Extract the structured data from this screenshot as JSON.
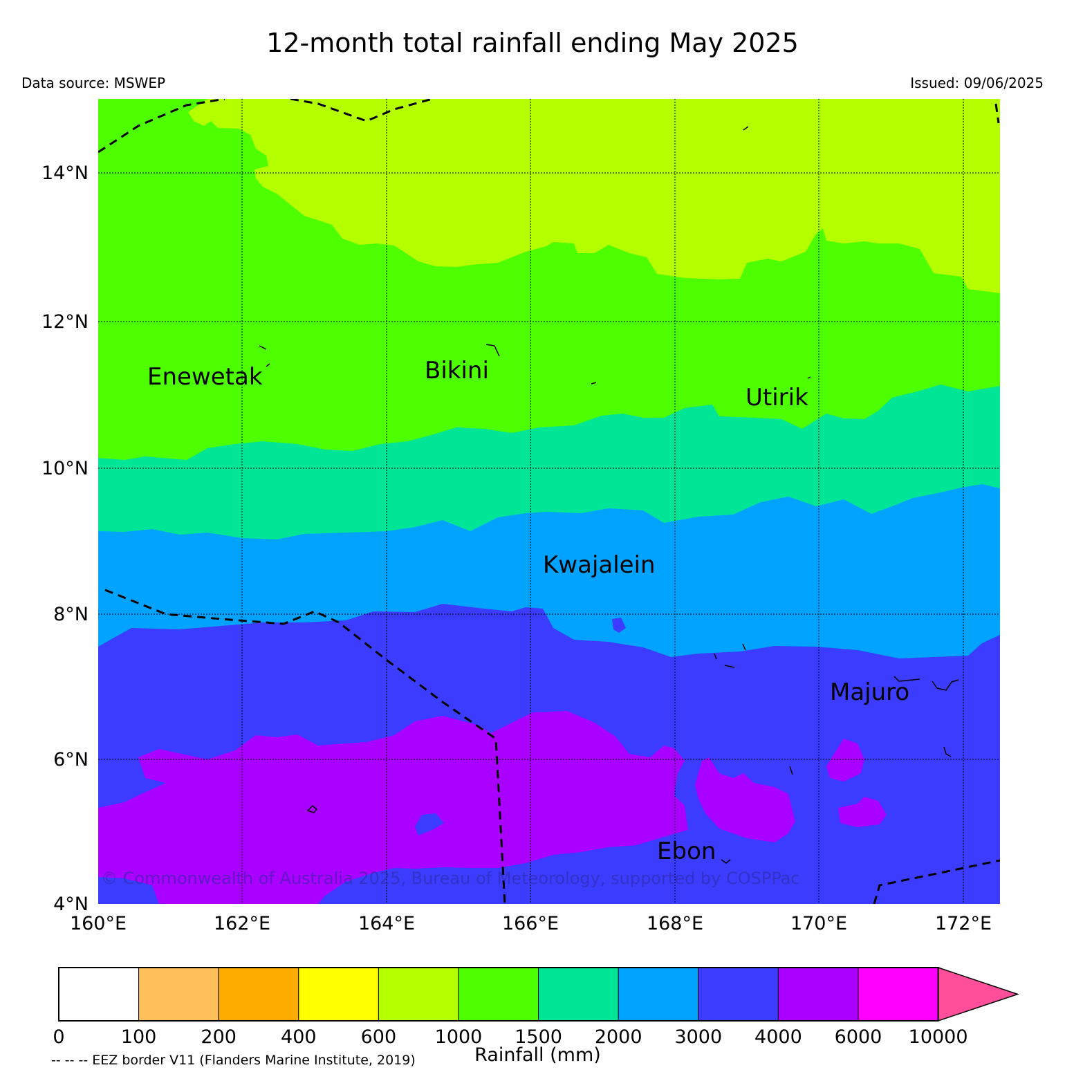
{
  "title": "12-month total rainfall ending May 2025",
  "data_source": "Data source: MSWEP",
  "issued": "Issued: 09/06/2025",
  "copyright": "© Commonwealth of Australia 2025, Bureau of Meteorology, supported by COSPPac",
  "map": {
    "lat_labels": [
      "14°N",
      "12°N",
      "10°N",
      "8°N",
      "6°N",
      "4°N"
    ],
    "lon_labels": [
      "160°E",
      "162°E",
      "164°E",
      "166°E",
      "168°E",
      "170°E",
      "172°E"
    ],
    "places": [
      {
        "name": "Enewetak"
      },
      {
        "name": "Bikini"
      },
      {
        "name": "Utirik"
      },
      {
        "name": "Kwajalein"
      },
      {
        "name": "Majuro"
      },
      {
        "name": "Ebon"
      }
    ],
    "extent": {
      "lon": [
        160,
        172.5
      ],
      "lat": [
        4,
        15
      ]
    }
  },
  "colorbar": {
    "title": "Rainfall (mm)",
    "ticks": [
      "0",
      "100",
      "200",
      "400",
      "600",
      "1000",
      "1500",
      "2000",
      "3000",
      "4000",
      "6000",
      "10000"
    ],
    "colors": [
      "#ffffff",
      "#ffbf5a",
      "#ffab00",
      "#ffff00",
      "#b4ff00",
      "#4dff00",
      "#00e696",
      "#00a3ff",
      "#3c3cff",
      "#aa00ff",
      "#ff00ff"
    ],
    "extend_color": "#ff4f9b"
  },
  "eez_note": "-- -- -- EEZ border V11 (Flanders Marine Institute, 2019)"
}
